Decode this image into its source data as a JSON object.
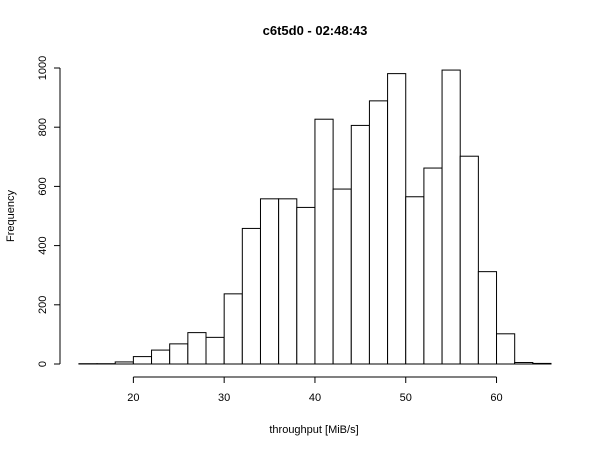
{
  "chart_data": {
    "type": "bar",
    "title": "c6t5d0 - 02:48:43",
    "xlabel": "throughput [MiB/s]",
    "ylabel": "Frequency",
    "bin_width": 2,
    "bins": [
      {
        "x0": 14,
        "x1": 16,
        "count": 1
      },
      {
        "x0": 16,
        "x1": 18,
        "count": 1
      },
      {
        "x0": 18,
        "x1": 20,
        "count": 7
      },
      {
        "x0": 20,
        "x1": 22,
        "count": 25
      },
      {
        "x0": 22,
        "x1": 24,
        "count": 47
      },
      {
        "x0": 24,
        "x1": 26,
        "count": 68
      },
      {
        "x0": 26,
        "x1": 28,
        "count": 106
      },
      {
        "x0": 28,
        "x1": 30,
        "count": 90
      },
      {
        "x0": 30,
        "x1": 32,
        "count": 237
      },
      {
        "x0": 32,
        "x1": 34,
        "count": 458
      },
      {
        "x0": 34,
        "x1": 36,
        "count": 558
      },
      {
        "x0": 36,
        "x1": 38,
        "count": 558
      },
      {
        "x0": 38,
        "x1": 40,
        "count": 529
      },
      {
        "x0": 40,
        "x1": 42,
        "count": 827
      },
      {
        "x0": 42,
        "x1": 44,
        "count": 591
      },
      {
        "x0": 44,
        "x1": 46,
        "count": 806
      },
      {
        "x0": 46,
        "x1": 48,
        "count": 889
      },
      {
        "x0": 48,
        "x1": 50,
        "count": 981
      },
      {
        "x0": 50,
        "x1": 52,
        "count": 565
      },
      {
        "x0": 52,
        "x1": 54,
        "count": 662
      },
      {
        "x0": 54,
        "x1": 56,
        "count": 993
      },
      {
        "x0": 56,
        "x1": 58,
        "count": 702
      },
      {
        "x0": 58,
        "x1": 60,
        "count": 312
      },
      {
        "x0": 60,
        "x1": 62,
        "count": 102
      },
      {
        "x0": 62,
        "x1": 64,
        "count": 5
      },
      {
        "x0": 64,
        "x1": 66,
        "count": 2
      }
    ],
    "x_ticks": [
      20,
      30,
      40,
      50,
      60
    ],
    "y_ticks": [
      0,
      200,
      400,
      600,
      800,
      1000
    ],
    "xlim": [
      13.9,
      66
    ],
    "ylim": [
      0,
      1000
    ],
    "grid": false
  }
}
